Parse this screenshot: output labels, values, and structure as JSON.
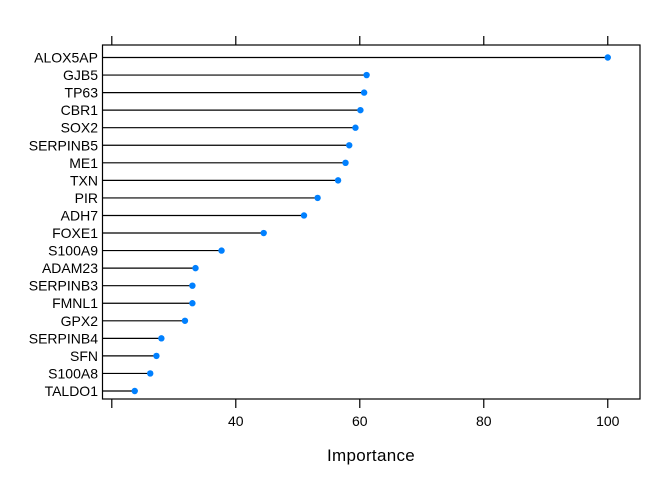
{
  "window": {
    "background_color": "#ffffff"
  },
  "chart_data": {
    "type": "scatter",
    "subtype": "horizontal-dotchart-variable-importance",
    "title": "",
    "xlabel": "Importance",
    "ylabel": "",
    "categories": [
      "ALOX5AP",
      "GJB5",
      "TP63",
      "CBR1",
      "SOX2",
      "SERPINB5",
      "ME1",
      "TXN",
      "PIR",
      "ADH7",
      "FOXE1",
      "S100A9",
      "ADAM23",
      "SERPINB3",
      "FMNL1",
      "GPX2",
      "SERPINB4",
      "SFN",
      "S100A8",
      "TALDO1"
    ],
    "values": [
      100.0,
      61.1,
      60.7,
      60.1,
      59.3,
      58.3,
      57.7,
      56.5,
      53.2,
      51.0,
      44.5,
      37.7,
      33.5,
      33.0,
      33.0,
      31.8,
      28.0,
      27.2,
      26.2,
      23.7
    ],
    "xlim": [
      18.5,
      105.2
    ],
    "x_ticks_labeled": [
      40,
      60,
      80,
      100
    ],
    "x_ticks_unlabeled": [
      20
    ],
    "grid": false,
    "legend": false,
    "point_color": "#0080ff",
    "line_color": "#000000",
    "axis_color": "#000000",
    "text_color": "#000000"
  }
}
